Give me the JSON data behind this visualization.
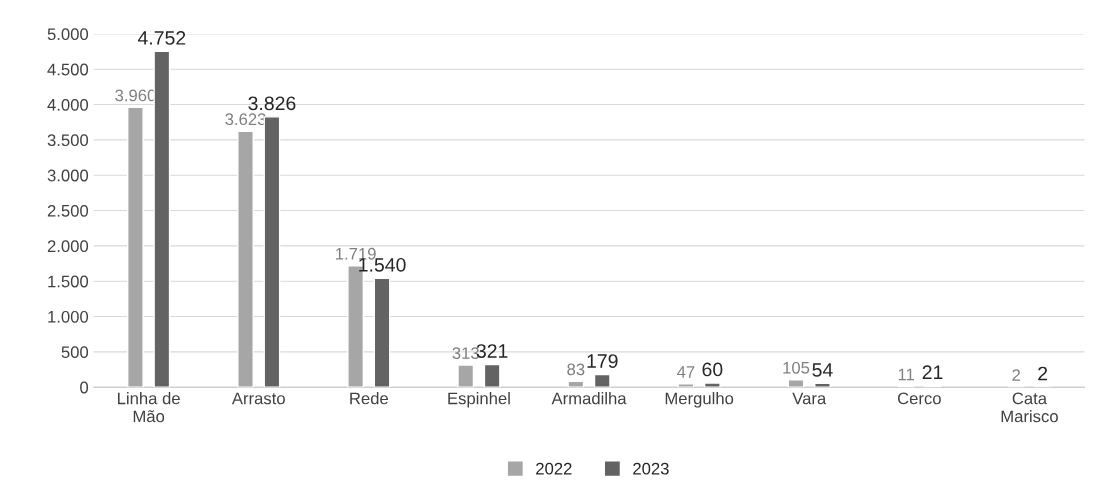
{
  "chart_data": {
    "type": "bar",
    "categories": [
      "Linha de Mão",
      "Arrasto",
      "Rede",
      "Espinhel",
      "Armadilha",
      "Mergulho",
      "Vara",
      "Cerco",
      "Cata Marisco"
    ],
    "series": [
      {
        "name": "2022",
        "color": "#a6a6a6",
        "values": [
          3960,
          3623,
          1719,
          313,
          83,
          47,
          105,
          11,
          2
        ],
        "value_labels": [
          "3.960",
          "3.623",
          "1.719",
          "313",
          "83",
          "47",
          "105",
          "11",
          "2"
        ]
      },
      {
        "name": "2023",
        "color": "#636363",
        "values": [
          4752,
          3826,
          1540,
          321,
          179,
          60,
          54,
          21,
          2
        ],
        "value_labels": [
          "4.752",
          "3.826",
          "1.540",
          "321",
          "179",
          "60",
          "54",
          "21",
          "2"
        ]
      }
    ],
    "ylim": [
      0,
      5000
    ],
    "yticks": [
      0,
      500,
      {
        "value": 1000,
        "label": "1.000"
      },
      {
        "value": 1500,
        "label": "1.500"
      },
      {
        "value": 2000,
        "label": "2.000"
      },
      {
        "value": 2500,
        "label": "2.500"
      },
      {
        "value": 3000,
        "label": "3.000"
      },
      {
        "value": 3500,
        "label": "3.500"
      },
      {
        "value": 4000,
        "label": "4.000"
      },
      {
        "value": 4500,
        "label": "4.500"
      },
      {
        "value": 5000,
        "label": "5.000"
      }
    ],
    "grid": "y",
    "legend": "bottom"
  }
}
